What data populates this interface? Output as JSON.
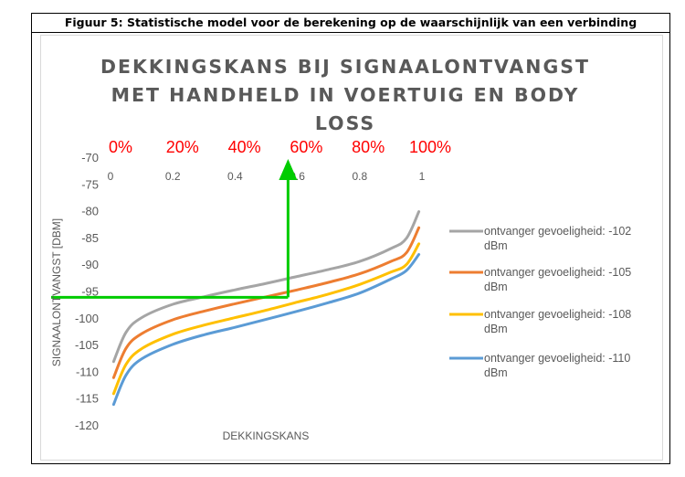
{
  "caption": "Figuur 5: Statistische model voor de berekening op de waarschijnlijk van een verbinding",
  "chart_data": {
    "type": "line",
    "title_lines": [
      "DEKKINGSKANS BIJ SIGNAALONTVANGST",
      "MET HANDHELD IN VOERTUIG EN BODY",
      "LOSS"
    ],
    "xlabel": "DEKKINGSKANS",
    "ylabel": "SIGNAALONTVANGST [DBM]",
    "xlim": [
      0,
      1
    ],
    "ylim": [
      -120,
      -70
    ],
    "x_ticks": [
      "0",
      "0.2",
      "0.4",
      "0.6",
      "0.8",
      "1"
    ],
    "y_ticks": [
      "-70",
      "-75",
      "-80",
      "-85",
      "-90",
      "-95",
      "-100",
      "-105",
      "-110",
      "-115",
      "-120"
    ],
    "percent_labels": [
      "0%",
      "20%",
      "40%",
      "60%",
      "80%",
      "100%"
    ],
    "grid": false,
    "legend_position": "right",
    "x": [
      0.01,
      0.05,
      0.1,
      0.2,
      0.3,
      0.4,
      0.5,
      0.6,
      0.7,
      0.8,
      0.9,
      0.95,
      0.99
    ],
    "series": [
      {
        "name_lines": [
          "ontvanger gevoeligheid: -102",
          "dBm"
        ],
        "color": "#a5a5a5",
        "values": [
          -108,
          -102.5,
          -99.8,
          -97.3,
          -95.9,
          -94.6,
          -93.4,
          -92.1,
          -90.8,
          -89.3,
          -86.9,
          -85.0,
          -80.0
        ]
      },
      {
        "name_lines": [
          "ontvanger gevoeligheid: -105",
          "dBm"
        ],
        "color": "#ed7d31",
        "values": [
          -111,
          -105.5,
          -102.8,
          -100.2,
          -98.6,
          -97.2,
          -95.9,
          -94.6,
          -93.2,
          -91.6,
          -89.3,
          -87.7,
          -83.0
        ]
      },
      {
        "name_lines": [
          "ontvanger gevoeligheid: -108",
          "dBm"
        ],
        "color": "#ffc000",
        "values": [
          -114,
          -108.5,
          -105.6,
          -102.9,
          -101.2,
          -99.8,
          -98.4,
          -96.9,
          -95.4,
          -93.6,
          -91.3,
          -89.9,
          -86.0
        ]
      },
      {
        "name_lines": [
          "ontvanger gevoeligheid: -110",
          "dBm"
        ],
        "color": "#5b9bd5",
        "values": [
          -116,
          -110.5,
          -107.5,
          -104.8,
          -103.0,
          -101.6,
          -100.1,
          -98.6,
          -97.0,
          -95.2,
          -92.6,
          -91.0,
          -88.0
        ]
      }
    ],
    "annotation": {
      "color": "#00cc00",
      "x": 0.57,
      "y": -96
    }
  }
}
